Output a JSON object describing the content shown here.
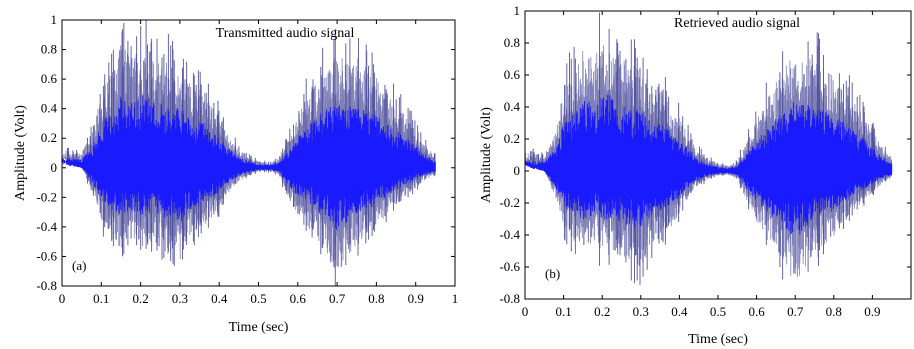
{
  "chart_data": [
    {
      "type": "line",
      "panel_label": "(a)",
      "title": "Transmitted audio signal",
      "xlabel": "Time (sec)",
      "ylabel": "Amplitude (Volt)",
      "xlim": [
        0,
        1
      ],
      "ylim": [
        -0.8,
        1
      ],
      "xticks": [
        "0",
        "0.1",
        "0.2",
        "0.3",
        "0.4",
        "0.5",
        "0.6",
        "0.7",
        "0.8",
        "0.9",
        "1"
      ],
      "yticks": [
        "1",
        "0.8",
        "0.6",
        "0.4",
        "0.2",
        "0",
        "-0.2",
        "-0.4",
        "-0.6",
        "-0.8"
      ],
      "signal_end": 0.95,
      "envelope": {
        "t": [
          0.0,
          0.02,
          0.05,
          0.08,
          0.1,
          0.13,
          0.15,
          0.18,
          0.21,
          0.23,
          0.26,
          0.3,
          0.33,
          0.36,
          0.39,
          0.42,
          0.45,
          0.48,
          0.5,
          0.53,
          0.55,
          0.58,
          0.62,
          0.66,
          0.7,
          0.73,
          0.76,
          0.8,
          0.84,
          0.88,
          0.92,
          0.95
        ],
        "upper": [
          0.15,
          0.13,
          0.12,
          0.3,
          0.6,
          0.8,
          0.98,
          0.88,
          1.0,
          0.9,
          0.85,
          0.8,
          0.65,
          0.62,
          0.45,
          0.3,
          0.15,
          0.08,
          0.05,
          0.04,
          0.08,
          0.25,
          0.55,
          0.75,
          0.9,
          0.85,
          0.8,
          0.72,
          0.55,
          0.4,
          0.2,
          0.1
        ],
        "lower": [
          0.1,
          0.05,
          0.0,
          -0.2,
          -0.4,
          -0.55,
          -0.6,
          -0.55,
          -0.6,
          -0.55,
          -0.65,
          -0.7,
          -0.5,
          -0.45,
          -0.35,
          -0.2,
          -0.1,
          -0.05,
          -0.03,
          -0.03,
          -0.05,
          -0.25,
          -0.45,
          -0.6,
          -0.8,
          -0.65,
          -0.55,
          -0.45,
          -0.3,
          -0.2,
          -0.1,
          -0.05
        ]
      },
      "colors": {
        "signal": "#1a1aff",
        "peaks": "#4a4a9a"
      }
    },
    {
      "type": "line",
      "panel_label": "(b)",
      "title": "Retrieved audio signal",
      "xlabel": "Time (sec)",
      "ylabel": "Amplitude (Volt)",
      "xlim": [
        0,
        1
      ],
      "ylim": [
        -0.8,
        1
      ],
      "xticks": [
        "0",
        "0.1",
        "0.2",
        "0.3",
        "0.4",
        "0.5",
        "0.6",
        "0.7",
        "0.8",
        "0.9"
      ],
      "yticks": [
        "1",
        "0.8",
        "0.6",
        "0.4",
        "0.2",
        "0",
        "-0.2",
        "-0.4",
        "-0.6",
        "-0.8"
      ],
      "signal_end": 0.95,
      "envelope": {
        "t": [
          0.0,
          0.02,
          0.05,
          0.08,
          0.1,
          0.13,
          0.15,
          0.18,
          0.21,
          0.23,
          0.26,
          0.3,
          0.33,
          0.36,
          0.39,
          0.42,
          0.45,
          0.48,
          0.5,
          0.53,
          0.55,
          0.58,
          0.62,
          0.66,
          0.7,
          0.73,
          0.76,
          0.8,
          0.84,
          0.88,
          0.92,
          0.95
        ],
        "upper": [
          0.15,
          0.13,
          0.12,
          0.3,
          0.6,
          0.75,
          0.9,
          0.85,
          1.0,
          0.9,
          0.8,
          0.75,
          0.6,
          0.58,
          0.42,
          0.3,
          0.15,
          0.08,
          0.05,
          0.04,
          0.08,
          0.25,
          0.5,
          0.7,
          0.88,
          0.85,
          0.8,
          0.7,
          0.55,
          0.4,
          0.2,
          0.1
        ],
        "lower": [
          0.1,
          0.05,
          0.0,
          -0.2,
          -0.4,
          -0.5,
          -0.55,
          -0.5,
          -0.6,
          -0.55,
          -0.62,
          -0.68,
          -0.5,
          -0.45,
          -0.35,
          -0.2,
          -0.1,
          -0.05,
          -0.03,
          -0.03,
          -0.05,
          -0.25,
          -0.45,
          -0.6,
          -0.78,
          -0.65,
          -0.55,
          -0.45,
          -0.3,
          -0.2,
          -0.1,
          -0.05
        ]
      },
      "colors": {
        "signal": "#1a1aff",
        "peaks": "#4a4a9a"
      }
    }
  ]
}
